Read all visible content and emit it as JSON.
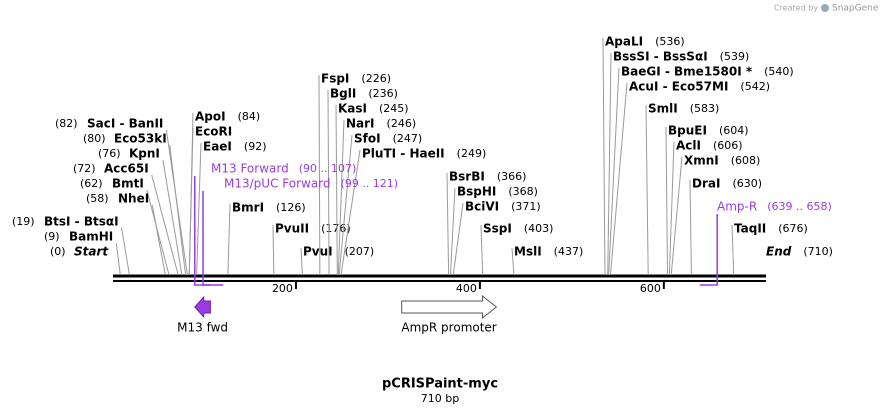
{
  "credit": {
    "prefix": "Created by",
    "brand": "SnapGene"
  },
  "map": {
    "name": "pCRISPaint-myc",
    "length_label": "710 bp",
    "length": 710,
    "ticks": [
      200,
      400,
      600
    ],
    "sites": [
      {
        "name": "SacI  - BanII",
        "position": 82,
        "position_label": "(82)"
      },
      {
        "name": "Eco53kI",
        "position": 80,
        "position_label": "(80)"
      },
      {
        "name": "KpnI",
        "position": 76,
        "position_label": "(76)"
      },
      {
        "name": "Acc65I",
        "position": 72,
        "position_label": "(72)"
      },
      {
        "name": "BmtI",
        "position": 62,
        "position_label": "(62)"
      },
      {
        "name": "NheI",
        "position": 58,
        "position_label": "(58)"
      },
      {
        "name": "BtsI  - BtsαI",
        "position": 19,
        "position_label": "(19)"
      },
      {
        "name": "BamHI",
        "position": 9,
        "position_label": "(9)"
      },
      {
        "name": "Start",
        "position": 0,
        "position_label": "(0)"
      },
      {
        "name": "ApoI",
        "position": 84,
        "position_label": "(84)"
      },
      {
        "name": "EcoRI",
        "position": 84
      },
      {
        "name": "EaeI",
        "position": 92,
        "position_label": "(92)"
      },
      {
        "name": "BmrI",
        "position": 126,
        "position_label": "(126)"
      },
      {
        "name": "PvuII",
        "position": 176,
        "position_label": "(176)"
      },
      {
        "name": "PvuI",
        "position": 207,
        "position_label": "(207)"
      },
      {
        "name": "FspI",
        "position": 226,
        "position_label": "(226)"
      },
      {
        "name": "BglI",
        "position": 236,
        "position_label": "(236)"
      },
      {
        "name": "KasI",
        "position": 245,
        "position_label": "(245)"
      },
      {
        "name": "NarI",
        "position": 246,
        "position_label": "(246)"
      },
      {
        "name": "SfoI",
        "position": 247,
        "position_label": "(247)"
      },
      {
        "name": "PluTI  - HaeII",
        "position": 249,
        "position_label": "(249)"
      },
      {
        "name": "BsrBI",
        "position": 366,
        "position_label": "(366)"
      },
      {
        "name": "BspHI",
        "position": 368,
        "position_label": "(368)"
      },
      {
        "name": "BciVI",
        "position": 371,
        "position_label": "(371)"
      },
      {
        "name": "SspI",
        "position": 403,
        "position_label": "(403)"
      },
      {
        "name": "MslI",
        "position": 437,
        "position_label": "(437)"
      },
      {
        "name": "ApaLI",
        "position": 536,
        "position_label": "(536)"
      },
      {
        "name": "BssSI  - BssSαI",
        "position": 539,
        "position_label": "(539)"
      },
      {
        "name": "BaeGI  - Bme1580I *",
        "position": 540,
        "position_label": "(540)"
      },
      {
        "name": "AcuI  - Eco57MI",
        "position": 542,
        "position_label": "(542)"
      },
      {
        "name": "SmlI",
        "position": 583,
        "position_label": "(583)"
      },
      {
        "name": "BpuEI",
        "position": 604,
        "position_label": "(604)"
      },
      {
        "name": "AclI",
        "position": 606,
        "position_label": "(606)"
      },
      {
        "name": "XmnI",
        "position": 608,
        "position_label": "(608)"
      },
      {
        "name": "DraI",
        "position": 630,
        "position_label": "(630)"
      },
      {
        "name": "TaqII",
        "position": 676,
        "position_label": "(676)"
      },
      {
        "name": "End",
        "position": 710,
        "position_label": "(710)"
      }
    ],
    "primers": [
      {
        "label": "M13 Forward",
        "range_label": "(90 .. 107)",
        "start": 90,
        "end": 107,
        "direction": "forward"
      },
      {
        "label": "M13/pUC Forward",
        "range_label": "(99 .. 121)",
        "start": 99,
        "end": 121,
        "direction": "forward"
      },
      {
        "label": "Amp-R",
        "range_label": "(639 .. 658)",
        "start": 639,
        "end": 658,
        "direction": "reverse"
      }
    ],
    "features": [
      {
        "label": "M13 fwd",
        "start": 90,
        "end": 107,
        "direction": "reverse",
        "color": "#9a3ce0"
      },
      {
        "label": "AmpR promoter",
        "start": 315,
        "end": 418,
        "direction": "forward",
        "color": "#ffffff"
      }
    ]
  }
}
